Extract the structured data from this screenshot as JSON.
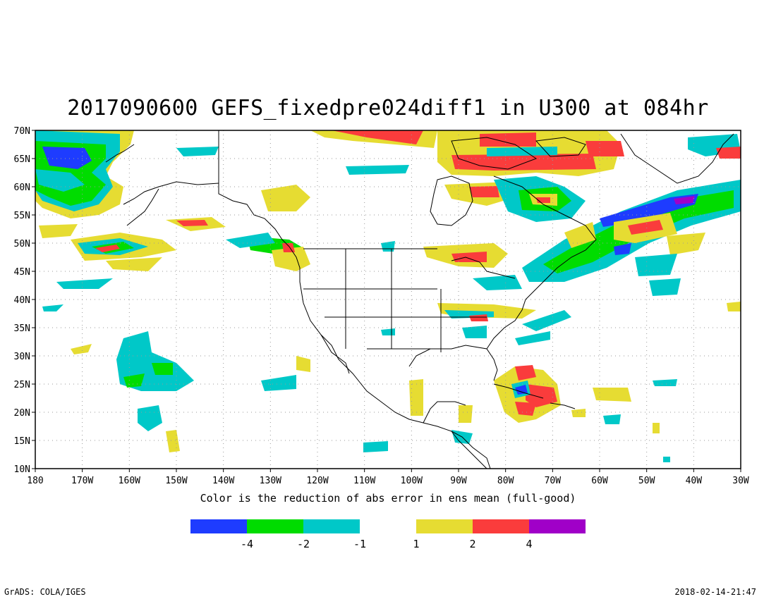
{
  "title": "2017090600 GEFS_fixedpre024diff1 in U300 at 084hr",
  "caption": "Color is the reduction of abs error in ens mean (full-good)",
  "footer": {
    "left": "GrADS: COLA/IGES",
    "right": "2018-02-14-21:47"
  },
  "map": {
    "lon_range": [
      180,
      330
    ],
    "lat_range": [
      10,
      70
    ],
    "x_tick_labels": [
      "180",
      "170W",
      "160W",
      "150W",
      "140W",
      "130W",
      "120W",
      "110W",
      "100W",
      "90W",
      "80W",
      "70W",
      "60W",
      "50W",
      "40W",
      "30W"
    ],
    "y_tick_labels": [
      "10N",
      "15N",
      "20N",
      "25N",
      "30N",
      "35N",
      "40N",
      "45N",
      "50N",
      "55N",
      "60N",
      "65N",
      "70N"
    ],
    "grid": "dotted"
  },
  "colorbar": {
    "colors": [
      "#1e3cff",
      "#00dc00",
      "#00c8c8",
      "#e6dc32",
      "#fa3c3c",
      "#a000c8"
    ],
    "labels": [
      "-4",
      "-2",
      "-1",
      "1",
      "2",
      "4"
    ]
  }
}
